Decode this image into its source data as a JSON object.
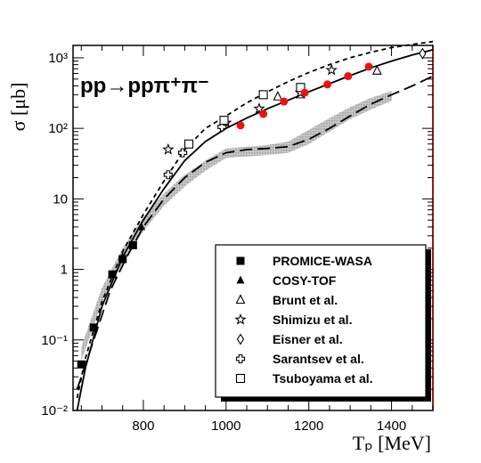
{
  "chart_data": {
    "type": "scatter",
    "title": "pp→ppπ⁺π⁻",
    "xlabel": "Tₚ [MeV]",
    "ylabel": "σ [μb]",
    "xlim": [
      630,
      1500
    ],
    "ylim": [
      0.01,
      1500
    ],
    "yscale": "log",
    "x_ticks": [
      800,
      1000,
      1200,
      1400
    ],
    "y_ticks": [
      {
        "value": 0.01,
        "label": "10⁻²"
      },
      {
        "value": 0.1,
        "label": "10⁻¹"
      },
      {
        "value": 1,
        "label": "1"
      },
      {
        "value": 10,
        "label": "10"
      },
      {
        "value": 100,
        "label": "10²"
      },
      {
        "value": 1000,
        "label": "10³"
      }
    ],
    "legend_position": "bottom-right",
    "series": [
      {
        "name": "PROMICE-WASA",
        "marker": "filled-square",
        "points": [
          {
            "x": 650,
            "y": 0.045
          },
          {
            "x": 680,
            "y": 0.15
          },
          {
            "x": 725,
            "y": 0.85
          },
          {
            "x": 750,
            "y": 1.4
          },
          {
            "x": 775,
            "y": 2.2
          }
        ]
      },
      {
        "name": "COSY-TOF",
        "marker": "filled-triangle",
        "points": [
          {
            "x": 750,
            "y": 1.5
          },
          {
            "x": 795,
            "y": 4.0
          }
        ]
      },
      {
        "name": "Brunt et al.",
        "marker": "open-triangle",
        "points": [
          {
            "x": 1125,
            "y": 280
          },
          {
            "x": 1180,
            "y": 300
          },
          {
            "x": 1365,
            "y": 650
          }
        ]
      },
      {
        "name": "Shimizu et al.",
        "marker": "open-star",
        "points": [
          {
            "x": 860,
            "y": 50
          },
          {
            "x": 1000,
            "y": 120
          },
          {
            "x": 1080,
            "y": 190
          },
          {
            "x": 1180,
            "y": 320
          },
          {
            "x": 1255,
            "y": 670
          }
        ]
      },
      {
        "name": "Eisner et al.",
        "marker": "open-diamond",
        "points": [
          {
            "x": 1475,
            "y": 1150
          }
        ]
      },
      {
        "name": "Sarantsev et al.",
        "marker": "open-cross",
        "points": [
          {
            "x": 860,
            "y": 22
          },
          {
            "x": 895,
            "y": 45
          },
          {
            "x": 990,
            "y": 105
          }
        ]
      },
      {
        "name": "Tsuboyama et al.",
        "marker": "open-square",
        "points": [
          {
            "x": 910,
            "y": 60
          },
          {
            "x": 995,
            "y": 130
          },
          {
            "x": 1090,
            "y": 300
          },
          {
            "x": 1180,
            "y": 380
          }
        ]
      },
      {
        "name": "",
        "marker": "red-circle",
        "points": [
          {
            "x": 1035,
            "y": 110
          },
          {
            "x": 1090,
            "y": 160
          },
          {
            "x": 1140,
            "y": 240
          },
          {
            "x": 1190,
            "y": 320
          },
          {
            "x": 1245,
            "y": 420
          },
          {
            "x": 1295,
            "y": 550
          },
          {
            "x": 1345,
            "y": 750
          }
        ]
      }
    ],
    "curves": [
      {
        "style": "solid",
        "points": [
          [
            640,
            0.01
          ],
          [
            660,
            0.04
          ],
          [
            700,
            0.3
          ],
          [
            750,
            1.5
          ],
          [
            800,
            5
          ],
          [
            850,
            14
          ],
          [
            900,
            35
          ],
          [
            950,
            65
          ],
          [
            1000,
            100
          ],
          [
            1050,
            140
          ],
          [
            1100,
            190
          ],
          [
            1150,
            250
          ],
          [
            1200,
            330
          ],
          [
            1250,
            430
          ],
          [
            1300,
            560
          ],
          [
            1350,
            720
          ],
          [
            1400,
            900
          ],
          [
            1450,
            1100
          ],
          [
            1500,
            1300
          ]
        ]
      },
      {
        "style": "short-dash",
        "points": [
          [
            640,
            0.015
          ],
          [
            660,
            0.055
          ],
          [
            700,
            0.35
          ],
          [
            750,
            1.8
          ],
          [
            800,
            6
          ],
          [
            850,
            18
          ],
          [
            900,
            50
          ],
          [
            950,
            100
          ],
          [
            1000,
            150
          ],
          [
            1050,
            230
          ],
          [
            1100,
            330
          ],
          [
            1150,
            460
          ],
          [
            1200,
            620
          ],
          [
            1250,
            800
          ],
          [
            1300,
            1000
          ],
          [
            1350,
            1200
          ],
          [
            1400,
            1400
          ],
          [
            1450,
            1550
          ],
          [
            1500,
            1700
          ]
        ]
      },
      {
        "style": "long-dash",
        "points": [
          [
            640,
            0.02
          ],
          [
            680,
            0.1
          ],
          [
            720,
            0.5
          ],
          [
            760,
            1.5
          ],
          [
            800,
            4
          ],
          [
            850,
            10
          ],
          [
            900,
            20
          ],
          [
            950,
            33
          ],
          [
            1000,
            45
          ],
          [
            1050,
            50
          ],
          [
            1100,
            52
          ],
          [
            1150,
            55
          ],
          [
            1200,
            70
          ],
          [
            1250,
            100
          ],
          [
            1300,
            150
          ],
          [
            1350,
            220
          ],
          [
            1400,
            300
          ],
          [
            1450,
            400
          ],
          [
            1500,
            550
          ]
        ]
      }
    ],
    "bands": [
      {
        "style": "gray-band",
        "lower": [
          [
            650,
            0.05
          ],
          [
            700,
            0.35
          ],
          [
            750,
            1.2
          ],
          [
            800,
            3.5
          ],
          [
            850,
            8
          ],
          [
            900,
            15
          ],
          [
            950,
            25
          ],
          [
            1000,
            38
          ],
          [
            1050,
            40
          ],
          [
            1100,
            42
          ],
          [
            1150,
            45
          ],
          [
            1200,
            60
          ],
          [
            1250,
            90
          ],
          [
            1300,
            135
          ],
          [
            1350,
            185
          ],
          [
            1400,
            245
          ]
        ],
        "upper": [
          [
            650,
            0.08
          ],
          [
            700,
            0.55
          ],
          [
            750,
            2.0
          ],
          [
            800,
            5.5
          ],
          [
            850,
            12
          ],
          [
            900,
            22
          ],
          [
            950,
            35
          ],
          [
            1000,
            52
          ],
          [
            1050,
            55
          ],
          [
            1100,
            58
          ],
          [
            1150,
            65
          ],
          [
            1200,
            95
          ],
          [
            1250,
            140
          ],
          [
            1300,
            200
          ],
          [
            1350,
            270
          ],
          [
            1400,
            340
          ]
        ]
      }
    ]
  }
}
